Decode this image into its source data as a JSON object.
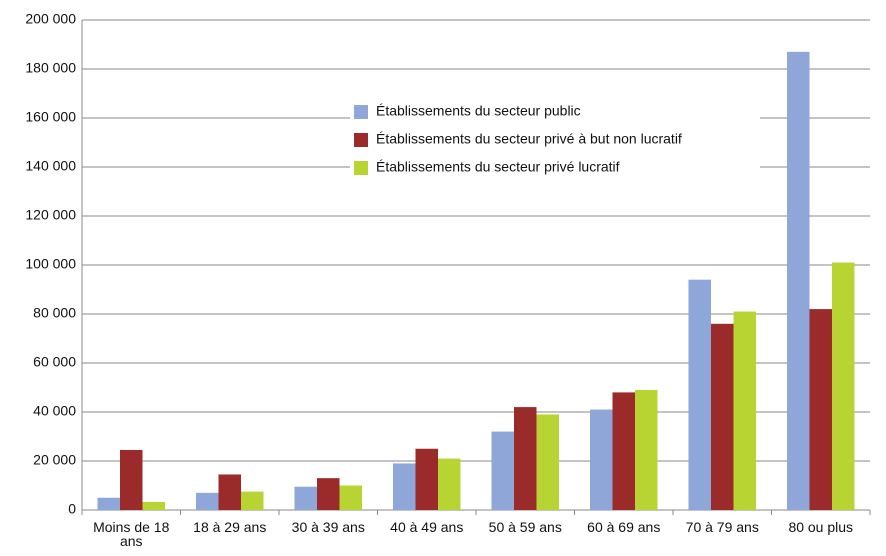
{
  "chart_data": {
    "type": "bar",
    "categories": [
      "Moins de 18 ans",
      "18 à 29 ans",
      "30 à 39 ans",
      "40 à 49 ans",
      "50 à 59 ans",
      "60 à 69 ans",
      "70 à 79 ans",
      "80 ou plus"
    ],
    "series": [
      {
        "name": "Établissements du secteur public",
        "color": "#8ea6d8",
        "values": [
          5000,
          7000,
          9500,
          19000,
          32000,
          41000,
          94000,
          187000
        ]
      },
      {
        "name": "Établissements du secteur privé à but non lucratif",
        "color": "#9b2a2a",
        "values": [
          24500,
          14500,
          13000,
          25000,
          42000,
          48000,
          76000,
          82000
        ]
      },
      {
        "name": "Établissements du secteur privé lucratif",
        "color": "#b8d433",
        "values": [
          3300,
          7500,
          10000,
          21000,
          39000,
          49000,
          81000,
          101000
        ]
      }
    ],
    "ylim": [
      0,
      200000
    ],
    "yticks": [
      0,
      {
        "value": 20000,
        "label": "20 000"
      },
      {
        "value": 40000,
        "label": "40 000"
      },
      {
        "value": 60000,
        "label": "60 000"
      },
      {
        "value": 80000,
        "label": "80 000"
      },
      {
        "value": 100000,
        "label": "100 000"
      },
      {
        "value": 120000,
        "label": "120 000"
      },
      {
        "value": 140000,
        "label": "140 000"
      },
      {
        "value": 160000,
        "label": "160 000"
      },
      {
        "value": 180000,
        "label": "180 000"
      },
      {
        "value": 200000,
        "label": "200 000"
      }
    ],
    "grid": true,
    "legend": "top-center"
  }
}
